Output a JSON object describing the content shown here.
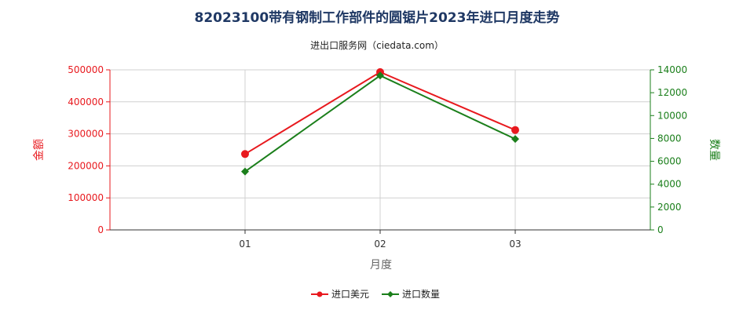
{
  "chart_data": {
    "type": "line",
    "title": "82023100带有钢制工作部件的圆锯片2023年进口月度走势",
    "subtitle": "进出口服务网（ciedata.com）",
    "xlabel": "月度",
    "ylabel_left": "金额",
    "ylabel_right": "数量",
    "categories": [
      "01",
      "02",
      "03"
    ],
    "y_left": {
      "min": 0,
      "max": 500000,
      "ticks": [
        "0",
        "100000",
        "200000",
        "300000",
        "400000",
        "500000"
      ]
    },
    "y_right": {
      "min": 0,
      "max": 14000,
      "ticks": [
        "0",
        "2000",
        "4000",
        "6000",
        "8000",
        "10000",
        "12000",
        "14000"
      ]
    },
    "series": [
      {
        "name": "进口美元",
        "axis": "left",
        "color": "#e8191e",
        "marker": "circle",
        "values": [
          237000,
          493000,
          312000
        ]
      },
      {
        "name": "进口数量",
        "axis": "right",
        "color": "#1b7f1b",
        "marker": "diamond",
        "values": [
          5100,
          13500,
          7950
        ]
      }
    ],
    "grid": true,
    "legend_position": "bottom-center"
  },
  "colors": {
    "left_axis": "#e8191e",
    "right_axis": "#1b7f1b",
    "title": "#1f3864",
    "grid": "#d0d0d0",
    "axis_text": "#333333"
  }
}
